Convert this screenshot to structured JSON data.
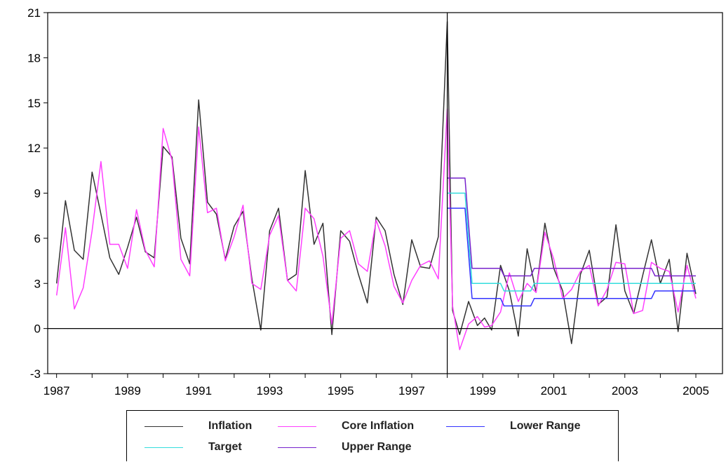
{
  "chart_data": {
    "type": "line",
    "xlabel": "",
    "ylabel": "",
    "ylim": [
      -3,
      21
    ],
    "yticks": [
      -3,
      0,
      3,
      6,
      9,
      12,
      15,
      18,
      21
    ],
    "xticks": [
      "1987",
      "1989",
      "1991",
      "1993",
      "1995",
      "1997",
      "1999",
      "2001",
      "2003",
      "2005"
    ],
    "xlim": [
      1986.75,
      2005.75
    ],
    "vertical_marker_x": 1998.0,
    "zero_line": true,
    "grid": false,
    "legend_position": "bottom",
    "series": [
      {
        "name": "Inflation",
        "color": "#333333",
        "points": [
          [
            1987.0,
            3.0
          ],
          [
            1987.25,
            8.5
          ],
          [
            1987.5,
            5.2
          ],
          [
            1987.75,
            4.6
          ],
          [
            1988.0,
            10.4
          ],
          [
            1988.25,
            7.6
          ],
          [
            1988.5,
            4.7
          ],
          [
            1988.75,
            3.6
          ],
          [
            1989.0,
            5.4
          ],
          [
            1989.25,
            7.4
          ],
          [
            1989.5,
            5.1
          ],
          [
            1989.75,
            4.7
          ],
          [
            1990.0,
            12.1
          ],
          [
            1990.25,
            11.4
          ],
          [
            1990.5,
            6.0
          ],
          [
            1990.75,
            4.3
          ],
          [
            1991.0,
            15.2
          ],
          [
            1991.25,
            8.4
          ],
          [
            1991.5,
            7.6
          ],
          [
            1991.75,
            4.6
          ],
          [
            1992.0,
            6.8
          ],
          [
            1992.25,
            7.8
          ],
          [
            1992.5,
            3.3
          ],
          [
            1992.75,
            -0.1
          ],
          [
            1993.0,
            6.5
          ],
          [
            1993.25,
            8.0
          ],
          [
            1993.5,
            3.2
          ],
          [
            1993.75,
            3.6
          ],
          [
            1994.0,
            10.5
          ],
          [
            1994.25,
            5.6
          ],
          [
            1994.5,
            7.0
          ],
          [
            1994.75,
            -0.4
          ],
          [
            1995.0,
            6.5
          ],
          [
            1995.25,
            5.8
          ],
          [
            1995.5,
            3.6
          ],
          [
            1995.75,
            1.7
          ],
          [
            1996.0,
            7.4
          ],
          [
            1996.25,
            6.5
          ],
          [
            1996.5,
            3.6
          ],
          [
            1996.75,
            1.6
          ],
          [
            1997.0,
            5.9
          ],
          [
            1997.25,
            4.1
          ],
          [
            1997.5,
            4.0
          ],
          [
            1997.75,
            6.1
          ],
          [
            1998.0,
            20.4
          ],
          [
            1998.15,
            1.2
          ],
          [
            1998.35,
            -0.4
          ],
          [
            1998.6,
            1.8
          ],
          [
            1998.85,
            0.2
          ],
          [
            1999.05,
            0.7
          ],
          [
            1999.25,
            -0.1
          ],
          [
            1999.5,
            4.2
          ],
          [
            1999.75,
            2.5
          ],
          [
            2000.0,
            -0.5
          ],
          [
            2000.25,
            5.3
          ],
          [
            2000.5,
            2.4
          ],
          [
            2000.75,
            7.0
          ],
          [
            2001.0,
            4.0
          ],
          [
            2001.25,
            2.5
          ],
          [
            2001.5,
            -1.0
          ],
          [
            2001.75,
            3.6
          ],
          [
            2002.0,
            5.2
          ],
          [
            2002.25,
            1.6
          ],
          [
            2002.5,
            2.1
          ],
          [
            2002.75,
            6.9
          ],
          [
            2003.0,
            2.5
          ],
          [
            2003.25,
            1.0
          ],
          [
            2003.5,
            3.5
          ],
          [
            2003.75,
            5.9
          ],
          [
            2004.0,
            3.0
          ],
          [
            2004.25,
            4.6
          ],
          [
            2004.5,
            -0.2
          ],
          [
            2004.75,
            5.0
          ],
          [
            2005.0,
            2.3
          ]
        ]
      },
      {
        "name": "Core Inflation",
        "color": "#ff3fff",
        "points": [
          [
            1987.0,
            2.2
          ],
          [
            1987.25,
            6.7
          ],
          [
            1987.5,
            1.3
          ],
          [
            1987.75,
            2.7
          ],
          [
            1988.0,
            6.5
          ],
          [
            1988.25,
            11.1
          ],
          [
            1988.5,
            5.6
          ],
          [
            1988.75,
            5.6
          ],
          [
            1989.0,
            4.0
          ],
          [
            1989.25,
            7.9
          ],
          [
            1989.5,
            5.2
          ],
          [
            1989.75,
            4.1
          ],
          [
            1990.0,
            13.3
          ],
          [
            1990.25,
            11.2
          ],
          [
            1990.5,
            4.6
          ],
          [
            1990.75,
            3.5
          ],
          [
            1991.0,
            13.4
          ],
          [
            1991.25,
            7.7
          ],
          [
            1991.5,
            8.0
          ],
          [
            1991.75,
            4.5
          ],
          [
            1992.0,
            6.1
          ],
          [
            1992.25,
            8.2
          ],
          [
            1992.5,
            3.0
          ],
          [
            1992.75,
            2.6
          ],
          [
            1993.0,
            6.2
          ],
          [
            1993.25,
            7.5
          ],
          [
            1993.5,
            3.2
          ],
          [
            1993.75,
            2.5
          ],
          [
            1994.0,
            8.0
          ],
          [
            1994.25,
            7.3
          ],
          [
            1994.5,
            4.8
          ],
          [
            1994.75,
            0.3
          ],
          [
            1995.0,
            6.0
          ],
          [
            1995.25,
            6.5
          ],
          [
            1995.5,
            4.3
          ],
          [
            1995.75,
            3.8
          ],
          [
            1996.0,
            7.2
          ],
          [
            1996.25,
            5.5
          ],
          [
            1996.5,
            2.8
          ],
          [
            1996.75,
            1.7
          ],
          [
            1997.0,
            3.2
          ],
          [
            1997.25,
            4.2
          ],
          [
            1997.5,
            4.5
          ],
          [
            1997.75,
            3.3
          ],
          [
            1998.0,
            14.6
          ],
          [
            1998.15,
            1.5
          ],
          [
            1998.35,
            -1.4
          ],
          [
            1998.6,
            0.3
          ],
          [
            1998.85,
            0.8
          ],
          [
            1999.05,
            0.1
          ],
          [
            1999.25,
            0.2
          ],
          [
            1999.5,
            1.1
          ],
          [
            1999.75,
            3.7
          ],
          [
            2000.0,
            1.8
          ],
          [
            2000.25,
            3.0
          ],
          [
            2000.5,
            2.4
          ],
          [
            2000.75,
            6.4
          ],
          [
            2001.0,
            4.6
          ],
          [
            2001.25,
            2.0
          ],
          [
            2001.5,
            2.6
          ],
          [
            2001.75,
            3.8
          ],
          [
            2002.0,
            4.2
          ],
          [
            2002.25,
            1.5
          ],
          [
            2002.5,
            2.6
          ],
          [
            2002.75,
            4.4
          ],
          [
            2003.0,
            4.3
          ],
          [
            2003.25,
            1.0
          ],
          [
            2003.5,
            1.2
          ],
          [
            2003.75,
            4.4
          ],
          [
            2004.0,
            4.0
          ],
          [
            2004.25,
            3.8
          ],
          [
            2004.5,
            1.1
          ],
          [
            2004.75,
            4.2
          ],
          [
            2005.0,
            2.0
          ]
        ]
      },
      {
        "name": "Lower Range",
        "color": "#3333ff",
        "points": [
          [
            1998.0,
            8.0
          ],
          [
            1998.5,
            8.0
          ],
          [
            1998.7,
            2.0
          ],
          [
            1999.5,
            2.0
          ],
          [
            1999.6,
            1.5
          ],
          [
            2000.35,
            1.5
          ],
          [
            2000.45,
            2.0
          ],
          [
            2003.75,
            2.0
          ],
          [
            2003.85,
            2.5
          ],
          [
            2005.0,
            2.5
          ]
        ]
      },
      {
        "name": "Target",
        "color": "#33dddd",
        "points": [
          [
            1998.0,
            9.0
          ],
          [
            1998.5,
            9.0
          ],
          [
            1998.7,
            3.0
          ],
          [
            1999.5,
            3.0
          ],
          [
            1999.6,
            2.5
          ],
          [
            2000.35,
            2.5
          ],
          [
            2000.45,
            3.0
          ],
          [
            2005.0,
            3.0
          ]
        ]
      },
      {
        "name": "Upper Range",
        "color": "#7722cc",
        "points": [
          [
            1998.0,
            10.0
          ],
          [
            1998.5,
            10.0
          ],
          [
            1998.7,
            4.0
          ],
          [
            1999.5,
            4.0
          ],
          [
            1999.6,
            3.5
          ],
          [
            2000.35,
            3.5
          ],
          [
            2000.45,
            4.0
          ],
          [
            2003.75,
            4.0
          ],
          [
            2003.85,
            3.5
          ],
          [
            2005.0,
            3.5
          ]
        ]
      }
    ]
  },
  "legend": {
    "items": [
      {
        "label": "Inflation",
        "color": "#333333"
      },
      {
        "label": "Core Inflation",
        "color": "#ff3fff"
      },
      {
        "label": "Lower Range",
        "color": "#3333ff"
      },
      {
        "label": "Target",
        "color": "#33dddd"
      },
      {
        "label": "Upper Range",
        "color": "#7722cc"
      }
    ]
  }
}
